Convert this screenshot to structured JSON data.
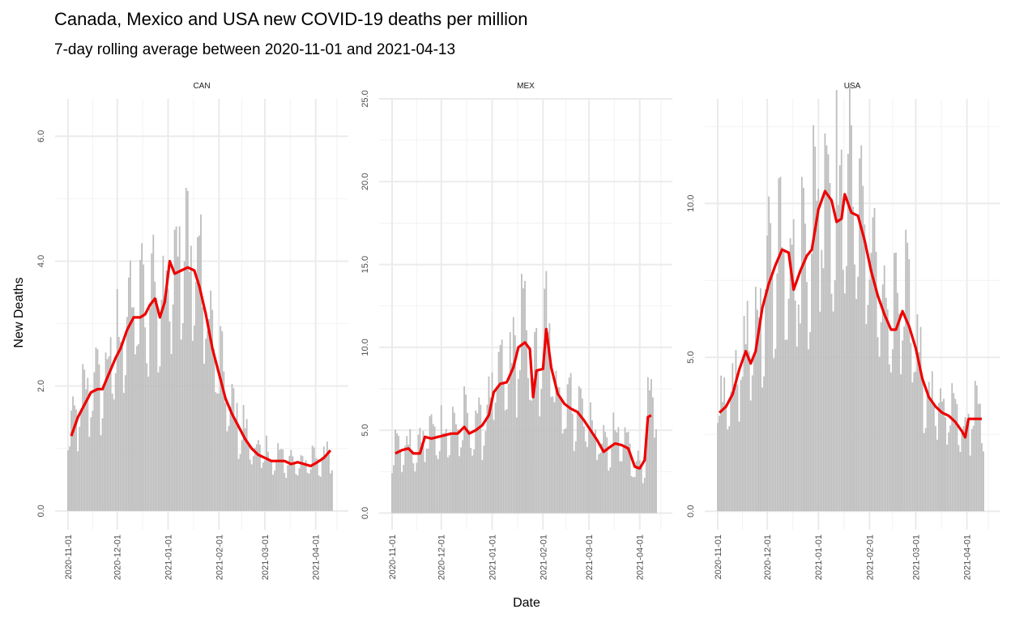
{
  "chart_data": {
    "type": "bar",
    "title": "Canada, Mexico and USA new COVID-19 deaths per million",
    "subtitle": "7-day rolling average between 2020-11-01 and 2021-04-13",
    "xlabel": "Date",
    "ylabel": "New Deaths",
    "x_range": [
      "2020-11-01",
      "2021-04-13"
    ],
    "x_ticks": [
      "2020-11-01",
      "2020-12-01",
      "2021-01-01",
      "2021-02-01",
      "2021-03-01",
      "2021-04-01"
    ],
    "grid": true,
    "legend": "none",
    "bar_color": "#bebebe",
    "line_color": "#ee0000",
    "panels": [
      {
        "label": "CAN",
        "ylim": [
          -0.3,
          6.6
        ],
        "y_ticks": [
          "0.0",
          "2.0",
          "4.0",
          "6.0"
        ],
        "y_tick_values": [
          0,
          2,
          4,
          6
        ],
        "rolling_avg": [
          [
            "2020-11-03",
            1.2
          ],
          [
            "2020-11-07",
            1.5
          ],
          [
            "2020-11-11",
            1.7
          ],
          [
            "2020-11-15",
            1.9
          ],
          [
            "2020-11-19",
            1.95
          ],
          [
            "2020-11-22",
            1.95
          ],
          [
            "2020-11-26",
            2.2
          ],
          [
            "2020-11-30",
            2.45
          ],
          [
            "2020-12-03",
            2.6
          ],
          [
            "2020-12-07",
            2.9
          ],
          [
            "2020-12-11",
            3.1
          ],
          [
            "2020-12-15",
            3.1
          ],
          [
            "2020-12-18",
            3.15
          ],
          [
            "2020-12-21",
            3.3
          ],
          [
            "2020-12-24",
            3.4
          ],
          [
            "2020-12-27",
            3.1
          ],
          [
            "2020-12-30",
            3.35
          ],
          [
            "2021-01-02",
            4.0
          ],
          [
            "2021-01-05",
            3.8
          ],
          [
            "2021-01-09",
            3.85
          ],
          [
            "2021-01-13",
            3.9
          ],
          [
            "2021-01-17",
            3.85
          ],
          [
            "2021-01-20",
            3.6
          ],
          [
            "2021-01-24",
            3.15
          ],
          [
            "2021-01-28",
            2.6
          ],
          [
            "2021-02-01",
            2.2
          ],
          [
            "2021-02-05",
            1.8
          ],
          [
            "2021-02-09",
            1.55
          ],
          [
            "2021-02-13",
            1.35
          ],
          [
            "2021-02-17",
            1.15
          ],
          [
            "2021-02-21",
            1.0
          ],
          [
            "2021-02-25",
            0.9
          ],
          [
            "2021-03-01",
            0.85
          ],
          [
            "2021-03-05",
            0.8
          ],
          [
            "2021-03-09",
            0.8
          ],
          [
            "2021-03-13",
            0.8
          ],
          [
            "2021-03-17",
            0.75
          ],
          [
            "2021-03-21",
            0.78
          ],
          [
            "2021-03-25",
            0.75
          ],
          [
            "2021-03-29",
            0.72
          ],
          [
            "2021-04-02",
            0.78
          ],
          [
            "2021-04-06",
            0.85
          ],
          [
            "2021-04-10",
            0.97
          ]
        ]
      },
      {
        "label": "MEX",
        "ylim": [
          -1.0,
          25.0
        ],
        "y_ticks": [
          "0.0",
          "5.0",
          "10.0",
          "15.0",
          "20.0",
          "25.0"
        ],
        "y_tick_values": [
          0,
          5,
          10,
          15,
          20,
          25
        ],
        "rolling_avg": [
          [
            "2020-11-03",
            3.6
          ],
          [
            "2020-11-07",
            3.8
          ],
          [
            "2020-11-11",
            3.9
          ],
          [
            "2020-11-14",
            3.6
          ],
          [
            "2020-11-18",
            3.6
          ],
          [
            "2020-11-21",
            4.6
          ],
          [
            "2020-11-25",
            4.5
          ],
          [
            "2020-11-29",
            4.6
          ],
          [
            "2020-12-03",
            4.7
          ],
          [
            "2020-12-07",
            4.8
          ],
          [
            "2020-12-11",
            4.8
          ],
          [
            "2020-12-15",
            5.2
          ],
          [
            "2020-12-18",
            4.8
          ],
          [
            "2020-12-22",
            5.0
          ],
          [
            "2020-12-26",
            5.3
          ],
          [
            "2020-12-30",
            5.9
          ],
          [
            "2021-01-02",
            7.3
          ],
          [
            "2021-01-06",
            7.8
          ],
          [
            "2021-01-10",
            7.9
          ],
          [
            "2021-01-14",
            8.8
          ],
          [
            "2021-01-17",
            10.0
          ],
          [
            "2021-01-21",
            10.3
          ],
          [
            "2021-01-24",
            9.9
          ],
          [
            "2021-01-26",
            7.0
          ],
          [
            "2021-01-28",
            8.6
          ],
          [
            "2021-02-01",
            8.7
          ],
          [
            "2021-02-03",
            11.1
          ],
          [
            "2021-02-06",
            8.8
          ],
          [
            "2021-02-10",
            7.2
          ],
          [
            "2021-02-14",
            6.6
          ],
          [
            "2021-02-18",
            6.3
          ],
          [
            "2021-02-22",
            6.1
          ],
          [
            "2021-02-26",
            5.6
          ],
          [
            "2021-03-02",
            5.0
          ],
          [
            "2021-03-06",
            4.4
          ],
          [
            "2021-03-10",
            3.7
          ],
          [
            "2021-03-14",
            4.0
          ],
          [
            "2021-03-17",
            4.2
          ],
          [
            "2021-03-21",
            4.1
          ],
          [
            "2021-03-25",
            3.9
          ],
          [
            "2021-03-29",
            2.8
          ],
          [
            "2021-04-01",
            2.7
          ],
          [
            "2021-04-04",
            3.2
          ],
          [
            "2021-04-06",
            5.8
          ],
          [
            "2021-04-08",
            5.9
          ]
        ]
      },
      {
        "label": "USA",
        "ylim": [
          -0.6,
          13.4
        ],
        "y_ticks": [
          "0.0",
          "5.0",
          "10.0"
        ],
        "y_tick_values": [
          0,
          5,
          10
        ],
        "rolling_avg": [
          [
            "2020-11-02",
            3.2
          ],
          [
            "2020-11-06",
            3.4
          ],
          [
            "2020-11-10",
            3.8
          ],
          [
            "2020-11-14",
            4.6
          ],
          [
            "2020-11-18",
            5.2
          ],
          [
            "2020-11-21",
            4.8
          ],
          [
            "2020-11-24",
            5.2
          ],
          [
            "2020-11-28",
            6.6
          ],
          [
            "2020-12-02",
            7.4
          ],
          [
            "2020-12-06",
            8.0
          ],
          [
            "2020-12-10",
            8.5
          ],
          [
            "2020-12-14",
            8.4
          ],
          [
            "2020-12-17",
            7.2
          ],
          [
            "2020-12-21",
            7.8
          ],
          [
            "2020-12-25",
            8.3
          ],
          [
            "2020-12-28",
            8.5
          ],
          [
            "2021-01-01",
            9.8
          ],
          [
            "2021-01-05",
            10.4
          ],
          [
            "2021-01-09",
            10.1
          ],
          [
            "2021-01-12",
            9.4
          ],
          [
            "2021-01-15",
            9.5
          ],
          [
            "2021-01-17",
            10.3
          ],
          [
            "2021-01-21",
            9.7
          ],
          [
            "2021-01-25",
            9.6
          ],
          [
            "2021-01-29",
            8.8
          ],
          [
            "2021-02-02",
            7.8
          ],
          [
            "2021-02-06",
            7.0
          ],
          [
            "2021-02-10",
            6.4
          ],
          [
            "2021-02-14",
            5.9
          ],
          [
            "2021-02-17",
            5.9
          ],
          [
            "2021-02-21",
            6.5
          ],
          [
            "2021-02-25",
            6.0
          ],
          [
            "2021-03-01",
            5.3
          ],
          [
            "2021-03-05",
            4.3
          ],
          [
            "2021-03-09",
            3.7
          ],
          [
            "2021-03-13",
            3.4
          ],
          [
            "2021-03-17",
            3.2
          ],
          [
            "2021-03-21",
            3.1
          ],
          [
            "2021-03-25",
            2.9
          ],
          [
            "2021-03-29",
            2.6
          ],
          [
            "2021-03-31",
            2.4
          ],
          [
            "2021-04-02",
            3.0
          ],
          [
            "2021-04-06",
            3.0
          ],
          [
            "2021-04-10",
            3.0
          ]
        ]
      }
    ]
  }
}
